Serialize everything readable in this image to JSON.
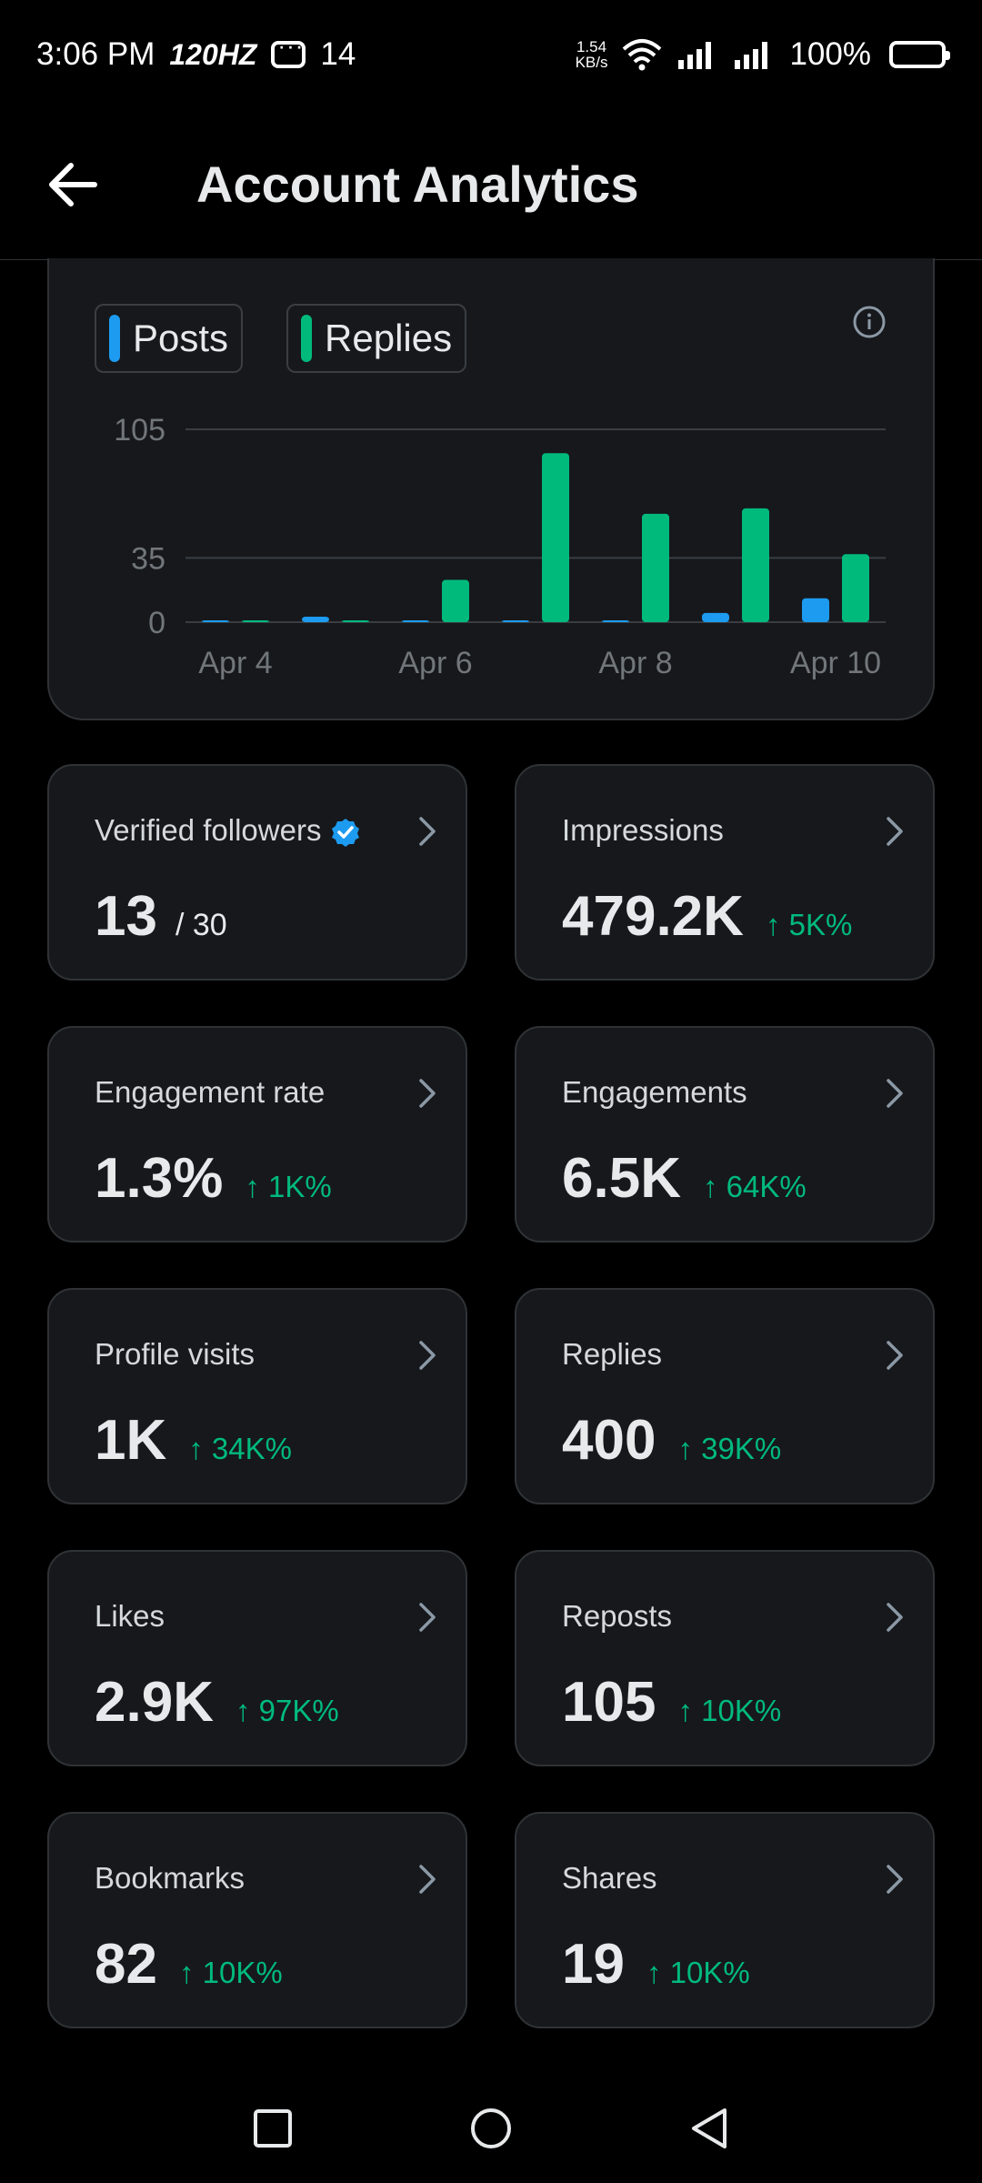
{
  "status_bar": {
    "time": "3:06 PM",
    "refresh": "120HZ",
    "notif_count": "14",
    "net_speed_value": "1.54",
    "net_speed_unit": "KB/s",
    "battery": "100%"
  },
  "header": {
    "title": "Account Analytics"
  },
  "chart": {
    "legend": [
      {
        "label": "Posts",
        "color": "#1d9bf0"
      },
      {
        "label": "Replies",
        "color": "#00ba7c"
      }
    ]
  },
  "chart_data": {
    "type": "bar",
    "categories": [
      "Apr 4",
      "Apr 5",
      "Apr 6",
      "Apr 7",
      "Apr 8",
      "Apr 9",
      "Apr 10"
    ],
    "x_tick_labels": [
      "Apr 4",
      "Apr 6",
      "Apr 8",
      "Apr 10"
    ],
    "series": [
      {
        "name": "Posts",
        "color": "#1d9bf0",
        "values": [
          0,
          3,
          1,
          0,
          0,
          5,
          13
        ]
      },
      {
        "name": "Replies",
        "color": "#00ba7c",
        "values": [
          0,
          0,
          23,
          92,
          59,
          62,
          37
        ]
      }
    ],
    "y_ticks": [
      0,
      35,
      105
    ],
    "ylim": [
      0,
      105
    ],
    "grid": true
  },
  "stats": [
    {
      "label": "Verified followers",
      "value": "13",
      "suffix": "/ 30",
      "change": "",
      "verified": true
    },
    {
      "label": "Impressions",
      "value": "479.2K",
      "suffix": "",
      "change": "↑ 5K%"
    },
    {
      "label": "Engagement rate",
      "value": "1.3%",
      "suffix": "",
      "change": "↑ 1K%"
    },
    {
      "label": "Engagements",
      "value": "6.5K",
      "suffix": "",
      "change": "↑ 64K%"
    },
    {
      "label": "Profile visits",
      "value": "1K",
      "suffix": "",
      "change": "↑ 34K%"
    },
    {
      "label": "Replies",
      "value": "400",
      "suffix": "",
      "change": "↑ 39K%"
    },
    {
      "label": "Likes",
      "value": "2.9K",
      "suffix": "",
      "change": "↑ 97K%"
    },
    {
      "label": "Reposts",
      "value": "105",
      "suffix": "",
      "change": "↑ 10K%"
    },
    {
      "label": "Bookmarks",
      "value": "82",
      "suffix": "",
      "change": "↑ 10K%"
    },
    {
      "label": "Shares",
      "value": "19",
      "suffix": "",
      "change": "↑ 10K%"
    }
  ],
  "icons": {
    "back": "arrow-left-icon",
    "info": "info-icon",
    "chevron": "chevron-right-icon",
    "verified": "verified-badge-icon",
    "nav": [
      "square-icon",
      "circle-icon",
      "triangle-back-icon"
    ]
  }
}
